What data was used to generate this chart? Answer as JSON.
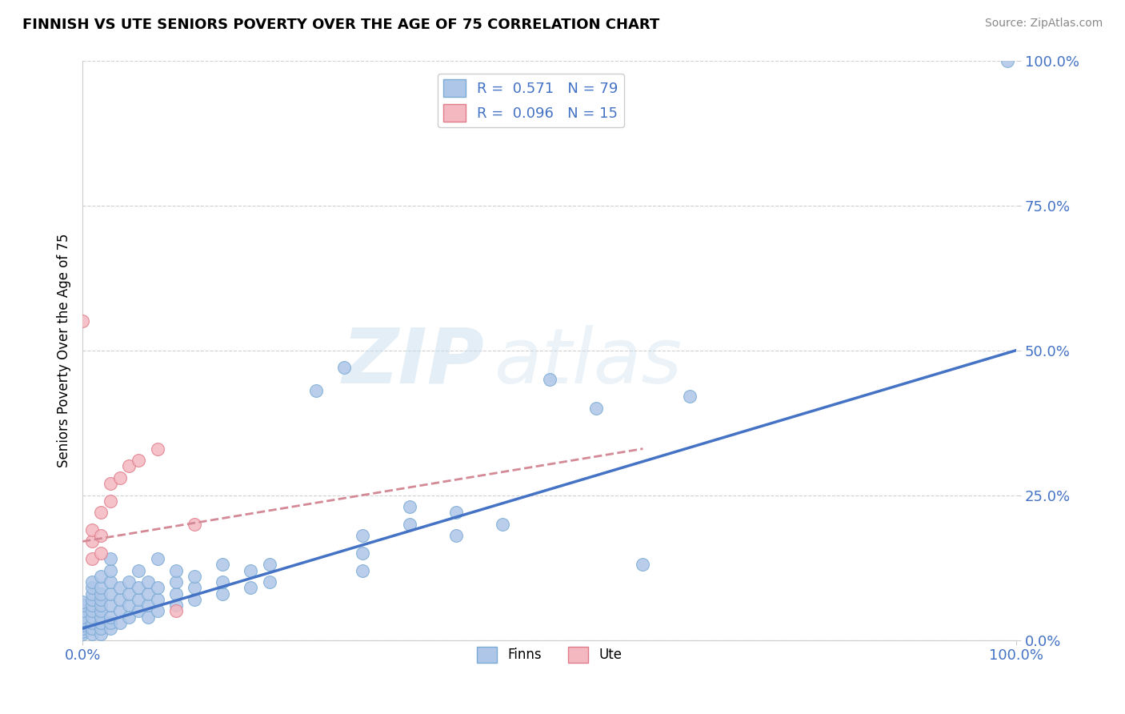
{
  "title": "FINNISH VS UTE SENIORS POVERTY OVER THE AGE OF 75 CORRELATION CHART",
  "source_text": "Source: ZipAtlas.com",
  "ylabel": "Seniors Poverty Over the Age of 75",
  "xlim": [
    0.0,
    1.0
  ],
  "ylim": [
    0.0,
    1.0
  ],
  "ytick_positions": [
    0.0,
    0.25,
    0.5,
    0.75,
    1.0
  ],
  "ytick_labels": [
    "0.0%",
    "25.0%",
    "50.0%",
    "75.0%",
    "100.0%"
  ],
  "xtick_positions": [
    0.0,
    1.0
  ],
  "xtick_labels": [
    "0.0%",
    "100.0%"
  ],
  "watermark_zip": "ZIP",
  "watermark_atlas": "atlas",
  "background_color": "#ffffff",
  "grid_color": "#d0d0d0",
  "dot_color_finn": "#aec6e8",
  "dot_edge_finn": "#7aabd4",
  "dot_color_ute": "#f4b8c1",
  "dot_edge_ute": "#e07b8a",
  "line_color_finn": "#4472c4",
  "line_color_ute": "#d48a96",
  "tick_color": "#4472c4",
  "finn_dots": [
    [
      0.0,
      0.01
    ],
    [
      0.0,
      0.015
    ],
    [
      0.0,
      0.02
    ],
    [
      0.0,
      0.025
    ],
    [
      0.0,
      0.03
    ],
    [
      0.0,
      0.035
    ],
    [
      0.0,
      0.04
    ],
    [
      0.0,
      0.05
    ],
    [
      0.0,
      0.06
    ],
    [
      0.0,
      0.065
    ],
    [
      0.01,
      0.01
    ],
    [
      0.01,
      0.02
    ],
    [
      0.01,
      0.03
    ],
    [
      0.01,
      0.04
    ],
    [
      0.01,
      0.05
    ],
    [
      0.01,
      0.06
    ],
    [
      0.01,
      0.07
    ],
    [
      0.01,
      0.08
    ],
    [
      0.01,
      0.09
    ],
    [
      0.01,
      0.1
    ],
    [
      0.02,
      0.01
    ],
    [
      0.02,
      0.02
    ],
    [
      0.02,
      0.03
    ],
    [
      0.02,
      0.04
    ],
    [
      0.02,
      0.05
    ],
    [
      0.02,
      0.06
    ],
    [
      0.02,
      0.07
    ],
    [
      0.02,
      0.08
    ],
    [
      0.02,
      0.09
    ],
    [
      0.02,
      0.11
    ],
    [
      0.03,
      0.02
    ],
    [
      0.03,
      0.03
    ],
    [
      0.03,
      0.04
    ],
    [
      0.03,
      0.06
    ],
    [
      0.03,
      0.08
    ],
    [
      0.03,
      0.1
    ],
    [
      0.03,
      0.12
    ],
    [
      0.03,
      0.14
    ],
    [
      0.04,
      0.03
    ],
    [
      0.04,
      0.05
    ],
    [
      0.04,
      0.07
    ],
    [
      0.04,
      0.09
    ],
    [
      0.05,
      0.04
    ],
    [
      0.05,
      0.06
    ],
    [
      0.05,
      0.08
    ],
    [
      0.05,
      0.1
    ],
    [
      0.06,
      0.05
    ],
    [
      0.06,
      0.07
    ],
    [
      0.06,
      0.09
    ],
    [
      0.06,
      0.12
    ],
    [
      0.07,
      0.04
    ],
    [
      0.07,
      0.06
    ],
    [
      0.07,
      0.08
    ],
    [
      0.07,
      0.1
    ],
    [
      0.08,
      0.05
    ],
    [
      0.08,
      0.07
    ],
    [
      0.08,
      0.09
    ],
    [
      0.08,
      0.14
    ],
    [
      0.1,
      0.06
    ],
    [
      0.1,
      0.08
    ],
    [
      0.1,
      0.1
    ],
    [
      0.1,
      0.12
    ],
    [
      0.12,
      0.07
    ],
    [
      0.12,
      0.09
    ],
    [
      0.12,
      0.11
    ],
    [
      0.15,
      0.08
    ],
    [
      0.15,
      0.1
    ],
    [
      0.15,
      0.13
    ],
    [
      0.18,
      0.09
    ],
    [
      0.18,
      0.12
    ],
    [
      0.2,
      0.1
    ],
    [
      0.2,
      0.13
    ],
    [
      0.25,
      0.43
    ],
    [
      0.28,
      0.47
    ],
    [
      0.3,
      0.12
    ],
    [
      0.3,
      0.15
    ],
    [
      0.3,
      0.18
    ],
    [
      0.35,
      0.2
    ],
    [
      0.35,
      0.23
    ],
    [
      0.4,
      0.18
    ],
    [
      0.4,
      0.22
    ],
    [
      0.45,
      0.2
    ],
    [
      0.5,
      0.45
    ],
    [
      0.55,
      0.4
    ],
    [
      0.6,
      0.13
    ],
    [
      0.65,
      0.42
    ],
    [
      0.99,
      1.0
    ]
  ],
  "ute_dots": [
    [
      0.0,
      0.55
    ],
    [
      0.01,
      0.14
    ],
    [
      0.01,
      0.17
    ],
    [
      0.01,
      0.19
    ],
    [
      0.02,
      0.15
    ],
    [
      0.02,
      0.18
    ],
    [
      0.02,
      0.22
    ],
    [
      0.03,
      0.24
    ],
    [
      0.03,
      0.27
    ],
    [
      0.04,
      0.28
    ],
    [
      0.05,
      0.3
    ],
    [
      0.06,
      0.31
    ],
    [
      0.08,
      0.33
    ],
    [
      0.1,
      0.05
    ],
    [
      0.12,
      0.2
    ]
  ],
  "finn_line_x0": 0.0,
  "finn_line_y0": 0.02,
  "finn_line_x1": 1.0,
  "finn_line_y1": 0.5,
  "ute_line_x0": 0.0,
  "ute_line_y0": 0.17,
  "ute_line_x1": 0.6,
  "ute_line_y1": 0.33
}
